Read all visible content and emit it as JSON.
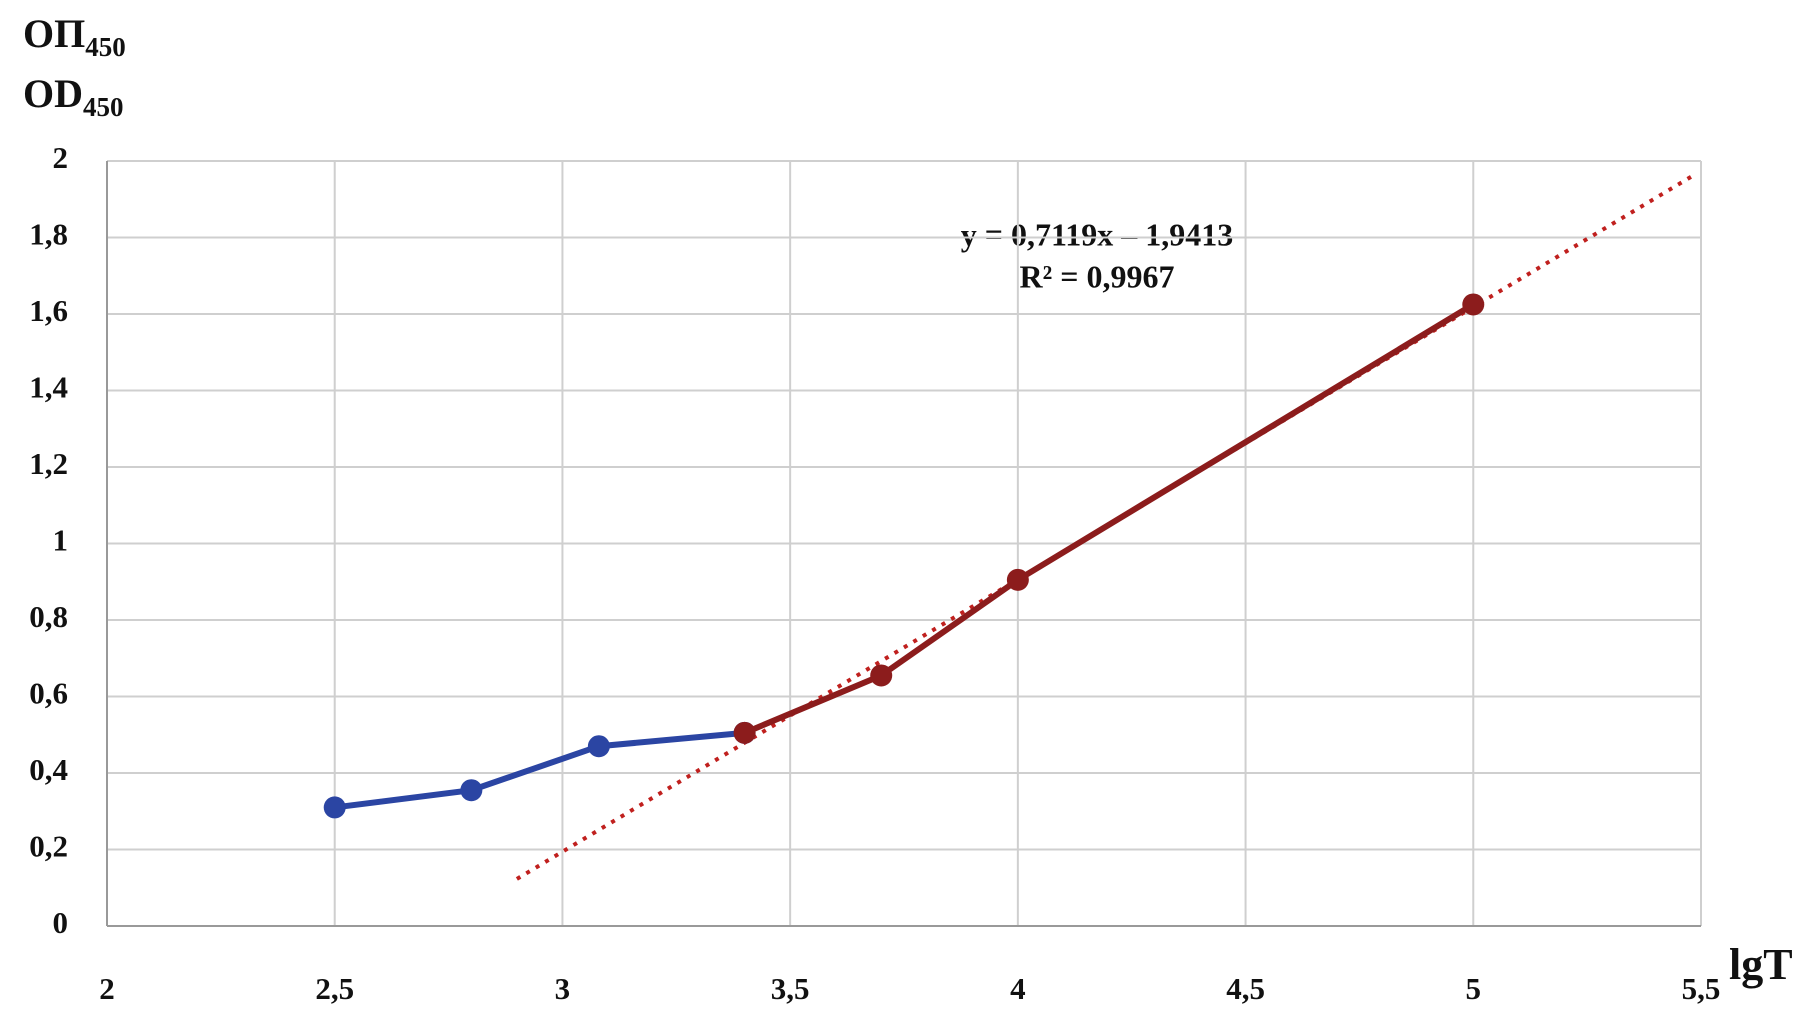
{
  "chart_data": {
    "type": "line",
    "y_label": [
      {
        "text": "ОП",
        "sub": "450"
      },
      {
        "text": "OD",
        "sub": "450"
      }
    ],
    "x_label": "lgT",
    "xlim": [
      2,
      5.5
    ],
    "xticks": [
      2,
      {
        "value": 2.5,
        "label": "2,5"
      },
      3,
      {
        "value": 3.5,
        "label": "3,5"
      },
      4,
      {
        "value": 4.5,
        "label": "4,5"
      },
      5,
      {
        "value": 5.5,
        "label": "5,5"
      }
    ],
    "ylim": [
      0,
      2
    ],
    "yticks": [
      0,
      {
        "value": 0.2,
        "label": "0,2"
      },
      {
        "value": 0.4,
        "label": "0,4"
      },
      {
        "value": 0.6,
        "label": "0,6"
      },
      {
        "value": 0.8,
        "label": "0,8"
      },
      1,
      {
        "value": 1.2,
        "label": "1,2"
      },
      {
        "value": 1.4,
        "label": "1,4"
      },
      {
        "value": 1.6,
        "label": "1,6"
      },
      {
        "value": 1.8,
        "label": "1,8"
      },
      2
    ],
    "grid": true,
    "series": [
      {
        "color": "#2b45a3",
        "x": [
          2.5,
          2.8,
          3.08,
          3.4
        ],
        "values": [
          0.31,
          0.355,
          0.47,
          0.505
        ]
      },
      {
        "color": "#8c1c1c",
        "x": [
          3.4,
          3.7,
          4,
          5
        ],
        "values": [
          0.505,
          0.655,
          0.905,
          1.625
        ]
      }
    ],
    "trendline": {
      "color": "#c0201e",
      "style": "dotted",
      "x": [
        2.9,
        5.48
      ],
      "values": [
        0.123,
        1.96
      ],
      "equation": "y = 0,7119x – 1,9413",
      "r_squared": "R² = 0,9967"
    }
  }
}
